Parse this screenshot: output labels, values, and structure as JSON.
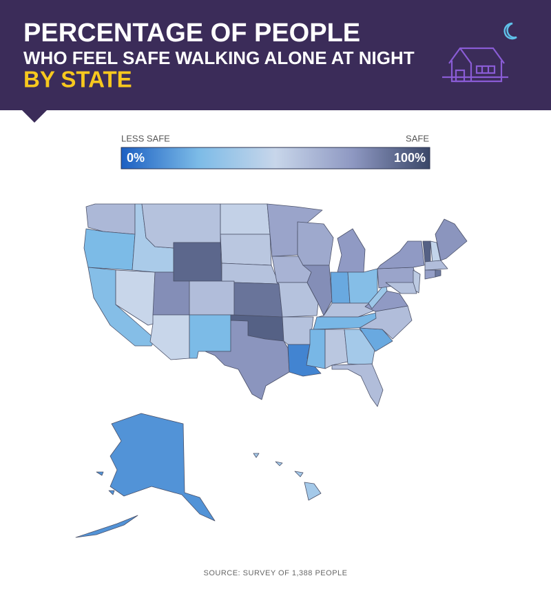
{
  "chart_data": {
    "type": "choropleth",
    "title_lines": [
      "PERCENTAGE OF PEOPLE",
      "WHO FEEL SAFE WALKING ALONE AT NIGHT"
    ],
    "subtitle": "BY STATE",
    "legend_low_label": "LESS SAFE",
    "legend_high_label": "SAFE",
    "ticks": [
      {
        "value": 0,
        "label": "0%"
      },
      {
        "value": 100,
        "label": "100%"
      }
    ],
    "colorscale": [
      "#1c5fc2",
      "#7cbbe7",
      "#c8d6ea",
      "#8e98c2",
      "#3a4768"
    ],
    "values": [
      62,
      25,
      28,
      50,
      40,
      58,
      90,
      78,
      50,
      60,
      25,
      52,
      56,
      58,
      86,
      92,
      76,
      70,
      64,
      58,
      58,
      10,
      68,
      78,
      74,
      20,
      28,
      58,
      24,
      24,
      56,
      38,
      60,
      20,
      60,
      74,
      36,
      70,
      74,
      92,
      48,
      76,
      60,
      72,
      85,
      55,
      58,
      14,
      38
    ],
    "source": "SOURCE: SURVEY OF 1,388 PEOPLE"
  }
}
